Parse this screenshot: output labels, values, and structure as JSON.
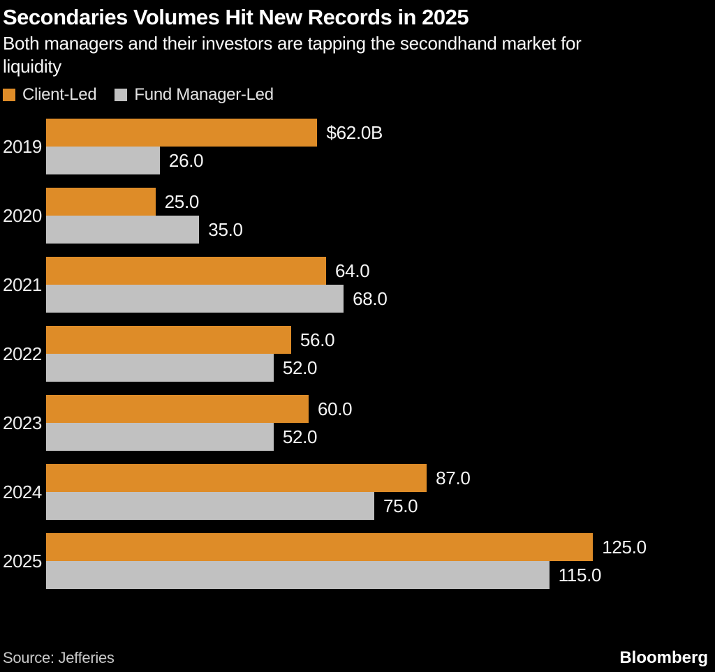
{
  "header": {
    "title": "Secondaries Volumes Hit New Records in 2025",
    "subtitle": "Both managers and their investors are tapping the secondhand market for liquidity"
  },
  "colors": {
    "background": "#000000",
    "client_led": "#DE8C28",
    "fund_manager_led": "#C1C1C1"
  },
  "legend": [
    {
      "label": "Client-Led",
      "color": "#DE8C28"
    },
    {
      "label": "Fund Manager-Led",
      "color": "#C1C1C1"
    }
  ],
  "chart_data": {
    "type": "bar",
    "orientation": "horizontal",
    "title": "Secondaries Volumes Hit New Records in 2025",
    "subtitle": "Both managers and their investors are tapping the secondhand market for liquidity",
    "unit": "$B",
    "categories": [
      "2019",
      "2020",
      "2021",
      "2022",
      "2023",
      "2024",
      "2025"
    ],
    "series": [
      {
        "name": "Client-Led",
        "color": "#DE8C28",
        "values": [
          62.0,
          25.0,
          64.0,
          56.0,
          60.0,
          87.0,
          125.0
        ],
        "labels": [
          "$62.0B",
          "25.0",
          "64.0",
          "56.0",
          "60.0",
          "87.0",
          "125.0"
        ]
      },
      {
        "name": "Fund Manager-Led",
        "color": "#C1C1C1",
        "values": [
          26.0,
          35.0,
          68.0,
          52.0,
          52.0,
          75.0,
          115.0
        ],
        "labels": [
          "26.0",
          "35.0",
          "68.0",
          "52.0",
          "52.0",
          "75.0",
          "115.0"
        ]
      }
    ],
    "xlim": [
      0,
      125
    ],
    "grid": false,
    "legend_position": "top-left",
    "value_labels": "outside-end"
  },
  "footer": {
    "source": "Source: Jefferies",
    "brand": "Bloomberg"
  }
}
